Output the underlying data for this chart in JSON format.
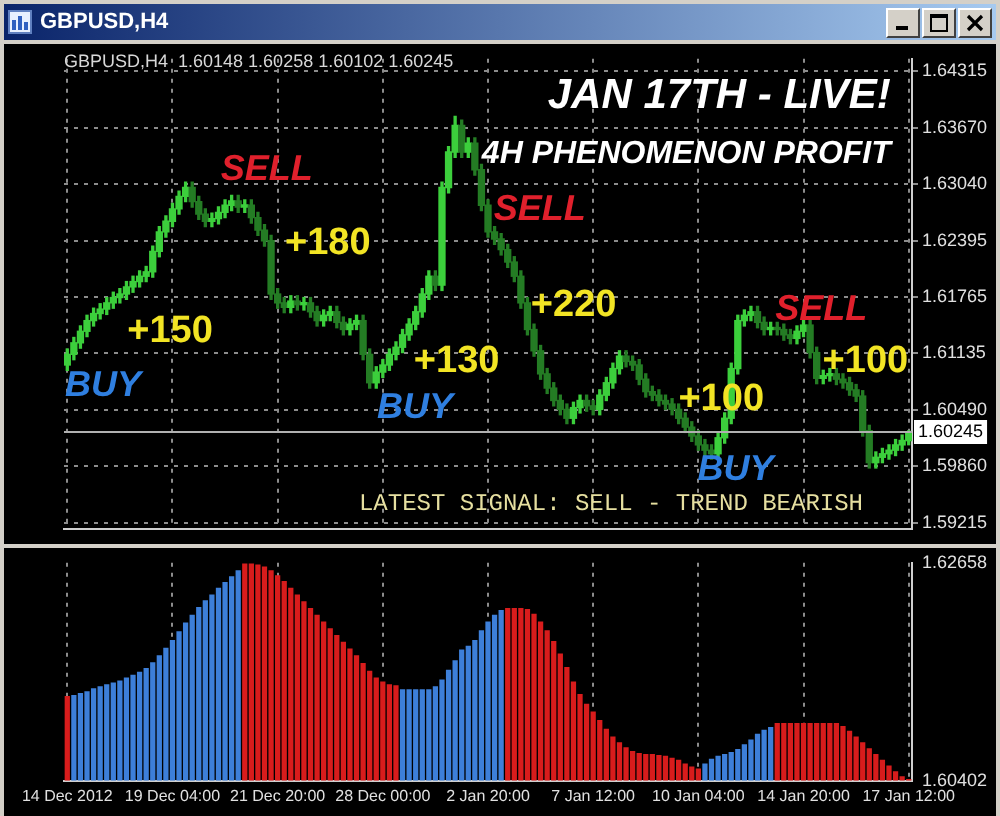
{
  "chart_data": [
    {
      "type": "candlestick",
      "title": "GBPUSD,H4",
      "colors": [
        "#3ccf3c",
        "#3ccf3c",
        "#3ccf3c",
        "#3ccf3c",
        "#3ccf3c",
        "#3ccf3c",
        "#3ccf3c",
        "#3ccf3c",
        "#3ccf3c",
        "#3ccf3c",
        "#3ccf3c",
        "#3ccf3c",
        "#3ccf3c",
        "#3ccf3c",
        "#3ccf3c",
        "#3ccf3c",
        "#3ccf3c",
        "#3ccf3c",
        "#3ccf3c",
        "#247c24",
        "#247c24",
        "#247c24",
        "#3ccf3c",
        "#3ccf3c",
        "#3ccf3c",
        "#3ccf3c",
        "#247c24",
        "#3ccf3c",
        "#247c24",
        "#247c24",
        "#247c24",
        "#247c24",
        "#247c24",
        "#247c24",
        "#3ccf3c",
        "#247c24",
        "#3ccf3c",
        "#247c24",
        "#247c24",
        "#3ccf3c",
        "#3ccf3c",
        "#247c24",
        "#247c24",
        "#3ccf3c",
        "#3ccf3c",
        "#247c24",
        "#247c24",
        "#3ccf3c",
        "#3ccf3c",
        "#3ccf3c",
        "#3ccf3c",
        "#3ccf3c",
        "#3ccf3c",
        "#3ccf3c",
        "#3ccf3c",
        "#3ccf3c",
        "#247c24",
        "#3ccf3c",
        "#3ccf3c",
        "#3ccf3c",
        "#247c24",
        "#3ccf3c",
        "#247c24",
        "#247c24",
        "#247c24",
        "#247c24",
        "#247c24",
        "#247c24",
        "#247c24",
        "#247c24",
        "#247c24",
        "#247c24",
        "#247c24",
        "#247c24",
        "#247c24",
        "#247c24",
        "#247c24",
        "#3ccf3c",
        "#3ccf3c",
        "#247c24",
        "#247c24",
        "#3ccf3c",
        "#3ccf3c",
        "#3ccf3c",
        "#3ccf3c",
        "#247c24",
        "#247c24",
        "#247c24",
        "#247c24",
        "#247c24",
        "#247c24",
        "#247c24",
        "#247c24",
        "#247c24",
        "#247c24",
        "#247c24",
        "#247c24",
        "#247c24",
        "#247c24",
        "#3ccf3c",
        "#3ccf3c",
        "#3ccf3c",
        "#3ccf3c",
        "#3ccf3c",
        "#3ccf3c",
        "#247c24",
        "#247c24",
        "#3ccf3c",
        "#247c24",
        "#247c24",
        "#247c24",
        "#3ccf3c",
        "#3ccf3c",
        "#247c24",
        "#247c24",
        "#3ccf3c",
        "#3ccf3c",
        "#247c24",
        "#247c24",
        "#247c24",
        "#247c24",
        "#247c24",
        "#247c24",
        "#3ccf3c",
        "#3ccf3c",
        "#3ccf3c",
        "#3ccf3c",
        "#3ccf3c",
        "#3ccf3c"
      ],
      "categories": [
        null,
        null,
        null,
        null,
        null,
        null,
        null,
        null,
        null,
        null,
        null,
        null,
        null,
        null,
        null,
        null,
        null,
        null,
        null,
        null,
        null,
        null,
        null,
        null,
        null,
        null,
        null,
        null,
        null,
        null,
        null,
        null,
        null,
        null,
        null,
        null,
        null,
        null,
        null,
        null,
        null,
        null,
        null,
        null,
        null,
        null,
        null,
        null,
        null,
        null,
        null,
        null,
        null,
        null,
        null,
        null,
        null,
        null,
        null,
        null,
        null,
        null,
        null,
        null,
        null,
        null,
        null,
        null,
        null,
        null,
        null,
        null,
        null,
        null,
        null,
        null,
        null,
        null,
        null,
        null,
        null,
        null,
        null,
        null,
        null,
        null,
        null,
        null,
        null,
        null,
        null,
        null,
        null,
        null,
        null,
        null,
        null,
        null,
        null,
        null,
        null,
        null,
        null,
        null,
        null,
        null,
        null,
        null,
        null,
        null,
        null,
        null,
        null,
        null,
        null,
        null,
        null,
        null,
        null,
        null,
        null,
        null,
        null,
        null,
        null,
        null,
        null,
        null,
        null
      ],
      "ohlc": [
        [
          1.61,
          1.6118,
          1.6094,
          1.6112
        ],
        [
          1.6112,
          1.6131,
          1.6106,
          1.6125
        ],
        [
          1.6125,
          1.6144,
          1.6119,
          1.6138
        ],
        [
          1.6138,
          1.6156,
          1.6132,
          1.615
        ],
        [
          1.615,
          1.6164,
          1.6144,
          1.6158
        ],
        [
          1.6158,
          1.6169,
          1.6152,
          1.6163
        ],
        [
          1.6163,
          1.6176,
          1.6157,
          1.617
        ],
        [
          1.617,
          1.6182,
          1.6164,
          1.6176
        ],
        [
          1.6176,
          1.6186,
          1.617,
          1.618
        ],
        [
          1.618,
          1.6194,
          1.6174,
          1.6188
        ],
        [
          1.6188,
          1.62,
          1.6182,
          1.6194
        ],
        [
          1.6194,
          1.6206,
          1.6188,
          1.62
        ],
        [
          1.62,
          1.6211,
          1.6194,
          1.6205
        ],
        [
          1.6205,
          1.6234,
          1.6199,
          1.6228
        ],
        [
          1.6228,
          1.6256,
          1.6222,
          1.625
        ],
        [
          1.625,
          1.6268,
          1.6244,
          1.6262
        ],
        [
          1.6262,
          1.6282,
          1.6256,
          1.6276
        ],
        [
          1.6276,
          1.6296,
          1.627,
          1.629
        ],
        [
          1.629,
          1.6306,
          1.6284,
          1.63
        ],
        [
          1.63,
          1.6306,
          1.6278,
          1.6284
        ],
        [
          1.6284,
          1.629,
          1.6264,
          1.627
        ],
        [
          1.627,
          1.6276,
          1.6256,
          1.6262
        ],
        [
          1.6262,
          1.6271,
          1.6256,
          1.6265
        ],
        [
          1.6265,
          1.6278,
          1.6259,
          1.6272
        ],
        [
          1.6272,
          1.6286,
          1.6266,
          1.628
        ],
        [
          1.628,
          1.6291,
          1.6274,
          1.6285
        ],
        [
          1.6285,
          1.6291,
          1.6272,
          1.6278
        ],
        [
          1.6278,
          1.6286,
          1.6272,
          1.628
        ],
        [
          1.628,
          1.6286,
          1.626,
          1.6266
        ],
        [
          1.6266,
          1.6272,
          1.6246,
          1.6252
        ],
        [
          1.6252,
          1.6258,
          1.6234,
          1.624
        ],
        [
          1.624,
          1.6246,
          1.6174,
          1.618
        ],
        [
          1.618,
          1.6186,
          1.6164,
          1.617
        ],
        [
          1.617,
          1.6176,
          1.6159,
          1.6165
        ],
        [
          1.6165,
          1.6178,
          1.6159,
          1.6172
        ],
        [
          1.6172,
          1.6178,
          1.6162,
          1.6168
        ],
        [
          1.6168,
          1.6176,
          1.6162,
          1.617
        ],
        [
          1.617,
          1.6176,
          1.6154,
          1.616
        ],
        [
          1.616,
          1.6166,
          1.6144,
          1.615
        ],
        [
          1.615,
          1.6162,
          1.6144,
          1.6156
        ],
        [
          1.6156,
          1.6166,
          1.615,
          1.616
        ],
        [
          1.616,
          1.6166,
          1.6142,
          1.6148
        ],
        [
          1.6148,
          1.6154,
          1.6134,
          1.614
        ],
        [
          1.614,
          1.6152,
          1.6134,
          1.6146
        ],
        [
          1.6146,
          1.6156,
          1.614,
          1.615
        ],
        [
          1.615,
          1.6156,
          1.6106,
          1.6112
        ],
        [
          1.6112,
          1.6118,
          1.6074,
          1.608
        ],
        [
          1.608,
          1.6098,
          1.6074,
          1.6092
        ],
        [
          1.6092,
          1.6106,
          1.6086,
          1.61
        ],
        [
          1.61,
          1.6118,
          1.6094,
          1.6112
        ],
        [
          1.6112,
          1.6126,
          1.6106,
          1.612
        ],
        [
          1.612,
          1.614,
          1.6114,
          1.6134
        ],
        [
          1.6134,
          1.6152,
          1.6128,
          1.6146
        ],
        [
          1.6146,
          1.6166,
          1.614,
          1.616
        ],
        [
          1.616,
          1.6186,
          1.6154,
          1.618
        ],
        [
          1.618,
          1.6206,
          1.6174,
          1.62
        ],
        [
          1.62,
          1.6206,
          1.6184,
          1.619
        ],
        [
          1.619,
          1.6306,
          1.6184,
          1.63
        ],
        [
          1.63,
          1.6346,
          1.6294,
          1.634
        ],
        [
          1.634,
          1.638,
          1.6334,
          1.637
        ],
        [
          1.637,
          1.6376,
          1.6334,
          1.634
        ],
        [
          1.634,
          1.6356,
          1.6334,
          1.635
        ],
        [
          1.635,
          1.6356,
          1.6314,
          1.632
        ],
        [
          1.632,
          1.6326,
          1.6274,
          1.628
        ],
        [
          1.628,
          1.6286,
          1.6244,
          1.625
        ],
        [
          1.625,
          1.6256,
          1.6236,
          1.6242
        ],
        [
          1.6242,
          1.6248,
          1.6224,
          1.623
        ],
        [
          1.623,
          1.6236,
          1.621,
          1.6216
        ],
        [
          1.6216,
          1.6222,
          1.6194,
          1.62
        ],
        [
          1.62,
          1.6206,
          1.6164,
          1.617
        ],
        [
          1.617,
          1.6176,
          1.6134,
          1.614
        ],
        [
          1.614,
          1.6146,
          1.611,
          1.6116
        ],
        [
          1.6116,
          1.6122,
          1.6084,
          1.609
        ],
        [
          1.609,
          1.6096,
          1.6068,
          1.6074
        ],
        [
          1.6074,
          1.608,
          1.6054,
          1.606
        ],
        [
          1.606,
          1.6066,
          1.6044,
          1.605
        ],
        [
          1.605,
          1.6056,
          1.6034,
          1.604
        ],
        [
          1.604,
          1.6058,
          1.6034,
          1.6052
        ],
        [
          1.6052,
          1.6066,
          1.6046,
          1.606
        ],
        [
          1.606,
          1.6066,
          1.6048,
          1.6054
        ],
        [
          1.6054,
          1.606,
          1.6044,
          1.605
        ],
        [
          1.605,
          1.6072,
          1.6044,
          1.6066
        ],
        [
          1.6066,
          1.6086,
          1.606,
          1.608
        ],
        [
          1.608,
          1.6102,
          1.6074,
          1.6096
        ],
        [
          1.6096,
          1.6116,
          1.609,
          1.611
        ],
        [
          1.611,
          1.6116,
          1.6098,
          1.6104
        ],
        [
          1.6104,
          1.611,
          1.6094,
          1.61
        ],
        [
          1.61,
          1.6106,
          1.6078,
          1.6084
        ],
        [
          1.6084,
          1.609,
          1.6064,
          1.607
        ],
        [
          1.607,
          1.6076,
          1.606,
          1.6066
        ],
        [
          1.6066,
          1.6072,
          1.6054,
          1.606
        ],
        [
          1.606,
          1.6066,
          1.605,
          1.6056
        ],
        [
          1.6056,
          1.6062,
          1.6044,
          1.605
        ],
        [
          1.605,
          1.6056,
          1.6034,
          1.604
        ],
        [
          1.604,
          1.6046,
          1.6024,
          1.603
        ],
        [
          1.603,
          1.6036,
          1.6014,
          1.602
        ],
        [
          1.602,
          1.6026,
          1.6004,
          1.601
        ],
        [
          1.601,
          1.6016,
          1.5998,
          1.6004
        ],
        [
          1.6004,
          1.601,
          1.5994,
          1.6
        ],
        [
          1.6,
          1.6024,
          1.5994,
          1.6018
        ],
        [
          1.6018,
          1.6046,
          1.6012,
          1.604
        ],
        [
          1.604,
          1.6102,
          1.6034,
          1.6096
        ],
        [
          1.6096,
          1.6156,
          1.609,
          1.615
        ],
        [
          1.615,
          1.6162,
          1.6144,
          1.6156
        ],
        [
          1.6156,
          1.6166,
          1.615,
          1.616
        ],
        [
          1.616,
          1.6166,
          1.6142,
          1.6148
        ],
        [
          1.6148,
          1.6154,
          1.6134,
          1.614
        ],
        [
          1.614,
          1.6148,
          1.6134,
          1.6142
        ],
        [
          1.6142,
          1.6148,
          1.6134,
          1.614
        ],
        [
          1.614,
          1.6146,
          1.6128,
          1.6134
        ],
        [
          1.6134,
          1.614,
          1.6124,
          1.613
        ],
        [
          1.613,
          1.6144,
          1.6124,
          1.6138
        ],
        [
          1.6138,
          1.6151,
          1.6132,
          1.6145
        ],
        [
          1.6145,
          1.6151,
          1.6108,
          1.6114
        ],
        [
          1.6114,
          1.612,
          1.6079,
          1.6085
        ],
        [
          1.6085,
          1.6094,
          1.6079,
          1.6088
        ],
        [
          1.6088,
          1.6096,
          1.6082,
          1.609
        ],
        [
          1.609,
          1.6096,
          1.6078,
          1.6084
        ],
        [
          1.6084,
          1.609,
          1.6074,
          1.608
        ],
        [
          1.608,
          1.6086,
          1.6066,
          1.6072
        ],
        [
          1.6072,
          1.6078,
          1.6059,
          1.6065
        ],
        [
          1.6065,
          1.6071,
          1.602,
          1.6026
        ],
        [
          1.6026,
          1.6032,
          1.5984,
          1.599
        ],
        [
          1.599,
          1.6002,
          1.5984,
          1.5996
        ],
        [
          1.5996,
          1.6006,
          1.599,
          1.6
        ],
        [
          1.6,
          1.601,
          1.5994,
          1.6004
        ],
        [
          1.6004,
          1.6016,
          1.5998,
          1.601
        ],
        [
          1.601,
          1.6021,
          1.6004,
          1.6015
        ],
        [
          1.60148,
          1.60258,
          1.60102,
          1.60245
        ]
      ],
      "ylim": [
        1.5915,
        1.6445
      ],
      "yticks": [
        1.59215,
        {
          "value": 1.5986,
          "label": "1.59860"
        },
        {
          "value": 1.6049,
          "label": "1.60490"
        },
        1.61135,
        1.61765,
        1.62395,
        {
          "value": 1.6304,
          "label": "1.63040"
        },
        {
          "value": 1.6367,
          "label": "1.63670"
        },
        1.64315
      ],
      "grid": true,
      "tick_labels": "y",
      "ref_lines": [
        {
          "axis": "y",
          "value": 1.60245,
          "label": "1.60245",
          "color": "#b0b0b0"
        }
      ],
      "annotations": [
        "GBPUSD,H4  1.60148 1.60258 1.60102 1.60245",
        "JAN 17TH - LIVE!",
        "4H PHENOMENON PROFIT",
        "SELL",
        "+180",
        "+150",
        "BUY",
        "+130",
        "BUY",
        "SELL",
        "+220",
        "SELL",
        "+100",
        "+100",
        "BUY",
        "LATEST SIGNAL: SELL - TREND BEARISH"
      ]
    },
    {
      "type": "bar",
      "categories": [
        "14 Dec 2012",
        null,
        null,
        null,
        null,
        null,
        null,
        null,
        null,
        null,
        null,
        null,
        null,
        null,
        null,
        null,
        "19 Dec 04:00",
        null,
        null,
        null,
        null,
        null,
        null,
        null,
        null,
        null,
        null,
        null,
        null,
        null,
        null,
        null,
        "21 Dec 20:00",
        null,
        null,
        null,
        null,
        null,
        null,
        null,
        null,
        null,
        null,
        null,
        null,
        null,
        null,
        null,
        "28 Dec 00:00",
        null,
        null,
        null,
        null,
        null,
        null,
        null,
        null,
        null,
        null,
        null,
        null,
        null,
        null,
        null,
        "2 Jan 20:00",
        null,
        null,
        null,
        null,
        null,
        null,
        null,
        null,
        null,
        null,
        null,
        null,
        null,
        null,
        null,
        "7 Jan 12:00",
        null,
        null,
        null,
        null,
        null,
        null,
        null,
        null,
        null,
        null,
        null,
        null,
        null,
        null,
        null,
        "10 Jan 04:00",
        null,
        null,
        null,
        null,
        null,
        null,
        null,
        null,
        null,
        null,
        null,
        null,
        null,
        null,
        null,
        "14 Jan 20:00",
        null,
        null,
        null,
        null,
        null,
        null,
        null,
        null,
        null,
        null,
        null,
        null,
        null,
        null,
        null,
        "17 Jan 12:00"
      ],
      "values": [
        1.6128,
        1.6129,
        1.6131,
        1.6133,
        1.6136,
        1.6138,
        1.614,
        1.6142,
        1.6144,
        1.6147,
        1.615,
        1.6153,
        1.6157,
        1.6163,
        1.617,
        1.6178,
        1.6186,
        1.6195,
        1.6204,
        1.6212,
        1.622,
        1.6227,
        1.6233,
        1.624,
        1.6246,
        1.6252,
        1.6258,
        1.6265,
        1.6265,
        1.6264,
        1.6262,
        1.6258,
        1.6253,
        1.6247,
        1.624,
        1.6233,
        1.6226,
        1.6219,
        1.6212,
        1.6205,
        1.6198,
        1.6191,
        1.6184,
        1.6177,
        1.617,
        1.6162,
        1.6154,
        1.6147,
        1.6143,
        1.614,
        1.6139,
        1.6135,
        1.6135,
        1.6135,
        1.6135,
        1.6135,
        1.6138,
        1.6145,
        1.6155,
        1.6165,
        1.6176,
        1.618,
        1.6186,
        1.6196,
        1.6205,
        1.6212,
        1.6217,
        1.6219,
        1.6219,
        1.6219,
        1.6218,
        1.6213,
        1.6205,
        1.6196,
        1.6185,
        1.6172,
        1.6158,
        1.6143,
        1.613,
        1.612,
        1.6112,
        1.6103,
        1.6094,
        1.6086,
        1.608,
        1.6075,
        1.6071,
        1.6069,
        1.6068,
        1.6068,
        1.6067,
        1.6066,
        1.6064,
        1.6062,
        1.6058,
        1.6055,
        1.6053,
        1.6058,
        1.6063,
        1.6066,
        1.6068,
        1.607,
        1.6073,
        1.6078,
        1.6083,
        1.6089,
        1.6093,
        1.6096,
        1.61,
        1.61,
        1.61,
        1.61,
        1.61,
        1.61,
        1.61,
        1.61,
        1.61,
        1.61,
        1.6097,
        1.6092,
        1.6086,
        1.608,
        1.6074,
        1.6068,
        1.6062,
        1.6056,
        1.605,
        1.6045,
        1.6042
      ],
      "colors": [
        "#d81c1c",
        "#3d7fd9",
        "#3d7fd9",
        "#3d7fd9",
        "#3d7fd9",
        "#3d7fd9",
        "#3d7fd9",
        "#3d7fd9",
        "#3d7fd9",
        "#3d7fd9",
        "#3d7fd9",
        "#3d7fd9",
        "#3d7fd9",
        "#3d7fd9",
        "#3d7fd9",
        "#3d7fd9",
        "#3d7fd9",
        "#3d7fd9",
        "#3d7fd9",
        "#3d7fd9",
        "#3d7fd9",
        "#3d7fd9",
        "#3d7fd9",
        "#3d7fd9",
        "#3d7fd9",
        "#3d7fd9",
        "#3d7fd9",
        "#d81c1c",
        "#d81c1c",
        "#d81c1c",
        "#d81c1c",
        "#d81c1c",
        "#d81c1c",
        "#d81c1c",
        "#d81c1c",
        "#d81c1c",
        "#d81c1c",
        "#d81c1c",
        "#d81c1c",
        "#d81c1c",
        "#d81c1c",
        "#d81c1c",
        "#d81c1c",
        "#d81c1c",
        "#d81c1c",
        "#d81c1c",
        "#d81c1c",
        "#d81c1c",
        "#d81c1c",
        "#d81c1c",
        "#d81c1c",
        "#3d7fd9",
        "#3d7fd9",
        "#3d7fd9",
        "#3d7fd9",
        "#3d7fd9",
        "#3d7fd9",
        "#3d7fd9",
        "#3d7fd9",
        "#3d7fd9",
        "#3d7fd9",
        "#3d7fd9",
        "#3d7fd9",
        "#3d7fd9",
        "#3d7fd9",
        "#3d7fd9",
        "#3d7fd9",
        "#d81c1c",
        "#d81c1c",
        "#d81c1c",
        "#d81c1c",
        "#d81c1c",
        "#d81c1c",
        "#d81c1c",
        "#d81c1c",
        "#d81c1c",
        "#d81c1c",
        "#d81c1c",
        "#d81c1c",
        "#d81c1c",
        "#d81c1c",
        "#d81c1c",
        "#d81c1c",
        "#d81c1c",
        "#d81c1c",
        "#d81c1c",
        "#d81c1c",
        "#d81c1c",
        "#d81c1c",
        "#d81c1c",
        "#d81c1c",
        "#d81c1c",
        "#d81c1c",
        "#d81c1c",
        "#d81c1c",
        "#d81c1c",
        "#d81c1c",
        "#3d7fd9",
        "#3d7fd9",
        "#3d7fd9",
        "#3d7fd9",
        "#3d7fd9",
        "#3d7fd9",
        "#3d7fd9",
        "#3d7fd9",
        "#3d7fd9",
        "#3d7fd9",
        "#3d7fd9",
        "#d81c1c",
        "#d81c1c",
        "#d81c1c",
        "#d81c1c",
        "#d81c1c",
        "#d81c1c",
        "#d81c1c",
        "#d81c1c",
        "#d81c1c",
        "#d81c1c",
        "#d81c1c",
        "#d81c1c",
        "#d81c1c",
        "#d81c1c",
        "#d81c1c",
        "#d81c1c",
        "#d81c1c",
        "#d81c1c",
        "#d81c1c",
        "#d81c1c",
        "#d81c1c"
      ],
      "ylim": [
        1.60402,
        1.62658
      ],
      "yticks": [
        1.60402,
        1.62658
      ],
      "grid": "x"
    }
  ]
}
